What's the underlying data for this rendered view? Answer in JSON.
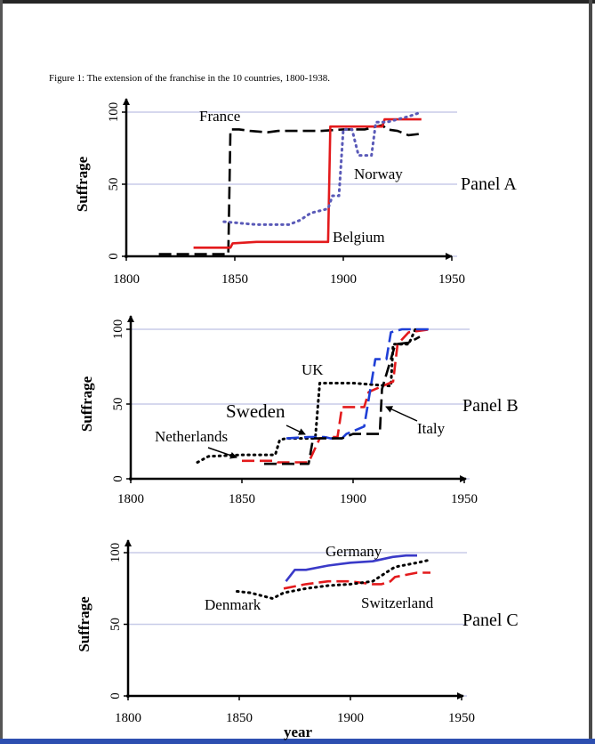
{
  "caption": "Figure 1: The extension of the franchise in the 10 countries, 1800-1938.",
  "colors": {
    "black": "#000000",
    "red": "#e31a1c",
    "blue": "#1f3fd6",
    "purple_dotted": "#5a5ab8",
    "dark_blue": "#3a3ac8",
    "gridline": "#c8cce8",
    "frame_bottom": "#2d4fb0"
  },
  "chart_data": [
    {
      "type": "line",
      "panel_label": "Panel A",
      "ylabel": "Suffrage",
      "xlabel": "",
      "xlim": [
        1800,
        1950
      ],
      "ylim": [
        0,
        100
      ],
      "xticks": [
        "1800",
        "1850",
        "1900",
        "1950"
      ],
      "yticks": [
        "0",
        "50",
        "100"
      ],
      "grid": true,
      "series": [
        {
          "name": "France",
          "color": "#000000",
          "style": "dash",
          "x": [
            1815,
            1847,
            1848,
            1852,
            1857,
            1865,
            1870,
            1880,
            1890,
            1900,
            1910,
            1918,
            1920,
            1925,
            1930,
            1936
          ],
          "y": [
            1.5,
            1.5,
            88,
            88,
            87,
            86,
            87,
            87,
            87,
            88,
            88,
            91,
            88,
            87,
            84,
            85
          ]
        },
        {
          "name": "Belgium",
          "color": "#e31a1c",
          "style": "solid",
          "x": [
            1831,
            1848,
            1849,
            1860,
            1893,
            1894,
            1900,
            1910,
            1918,
            1919,
            1925,
            1930,
            1936
          ],
          "y": [
            6,
            6,
            9,
            10,
            10,
            90,
            90,
            90,
            90,
            95,
            95,
            95,
            95
          ]
        },
        {
          "name": "Norway",
          "color": "#5a5ab8",
          "style": "dot",
          "x": [
            1845,
            1860,
            1875,
            1880,
            1885,
            1893,
            1895,
            1898,
            1900,
            1904,
            1907,
            1910,
            1913,
            1915,
            1920,
            1930,
            1936
          ],
          "y": [
            24,
            22,
            22,
            25,
            30,
            33,
            42,
            42,
            88,
            88,
            70,
            70,
            70,
            93,
            93,
            97,
            100
          ]
        }
      ],
      "annotations": [
        "France",
        "Norway",
        "Belgium"
      ]
    },
    {
      "type": "line",
      "panel_label": "Panel B",
      "ylabel": "Suffrage",
      "xlabel": "",
      "xlim": [
        1800,
        1950
      ],
      "ylim": [
        0,
        100
      ],
      "xticks": [
        "1800",
        "1850",
        "1900",
        "1950"
      ],
      "yticks": [
        "0",
        "50",
        "100"
      ],
      "grid": true,
      "series": [
        {
          "name": "UK",
          "color": "#000000",
          "style": "dot",
          "x": [
            1830,
            1835,
            1850,
            1865,
            1867,
            1870,
            1883,
            1885,
            1900,
            1917,
            1918,
            1925,
            1928
          ],
          "y": [
            11,
            15,
            16,
            16,
            26,
            27,
            27,
            64,
            64,
            62,
            90,
            90,
            100
          ]
        },
        {
          "name": "Sweden",
          "color": "#e31a1c",
          "style": "dash",
          "x": [
            1850,
            1865,
            1866,
            1880,
            1885,
            1890,
            1893,
            1895,
            1905,
            1907,
            1910,
            1918,
            1920,
            1925,
            1935
          ],
          "y": [
            12,
            12,
            11,
            11,
            27,
            28,
            28,
            48,
            48,
            58,
            60,
            65,
            90,
            98,
            100
          ]
        },
        {
          "name": "Netherlands",
          "color": "#1f3fd6",
          "style": "dash",
          "x": [
            1870,
            1880,
            1887,
            1890,
            1895,
            1897,
            1905,
            1910,
            1915,
            1917,
            1922,
            1930,
            1935
          ],
          "y": [
            27,
            28,
            28,
            27,
            27,
            30,
            35,
            80,
            80,
            98,
            100,
            100,
            100
          ]
        },
        {
          "name": "Italy",
          "color": "#000000",
          "style": "dash",
          "x": [
            1860,
            1880,
            1882,
            1895,
            1900,
            1912,
            1913,
            1919,
            1925,
            1930
          ],
          "y": [
            10,
            10,
            27,
            27,
            30,
            30,
            60,
            90,
            91,
            95
          ]
        }
      ],
      "annotations": [
        "UK",
        "Sweden",
        "Netherlands",
        "Italy"
      ]
    },
    {
      "type": "line",
      "panel_label": "Panel C",
      "ylabel": "Suffrage",
      "xlabel": "year",
      "xlim": [
        1800,
        1950
      ],
      "ylim": [
        0,
        100
      ],
      "xticks": [
        "1800",
        "1850",
        "1900",
        "1950"
      ],
      "yticks": [
        "0",
        "50",
        "100"
      ],
      "grid": true,
      "series": [
        {
          "name": "Germany",
          "color": "#3a3ac8",
          "style": "solid",
          "x": [
            1871,
            1875,
            1880,
            1890,
            1900,
            1910,
            1919,
            1925,
            1930
          ],
          "y": [
            80,
            88,
            88,
            91,
            93,
            94,
            97,
            98,
            98
          ]
        },
        {
          "name": "Switzerland",
          "color": "#e31a1c",
          "style": "dash",
          "x": [
            1870,
            1880,
            1890,
            1900,
            1910,
            1914,
            1918,
            1920,
            1930,
            1936
          ],
          "y": [
            75,
            78,
            80,
            80,
            78,
            78,
            80,
            83,
            86,
            86
          ]
        },
        {
          "name": "Denmark",
          "color": "#000000",
          "style": "dot",
          "x": [
            1849,
            1855,
            1860,
            1865,
            1870,
            1880,
            1890,
            1900,
            1910,
            1915,
            1920,
            1930,
            1936
          ],
          "y": [
            73,
            72,
            70,
            68,
            72,
            75,
            77,
            78,
            80,
            85,
            90,
            93,
            95
          ]
        }
      ],
      "annotations": [
        "Germany",
        "Switzerland",
        "Denmark"
      ]
    }
  ]
}
